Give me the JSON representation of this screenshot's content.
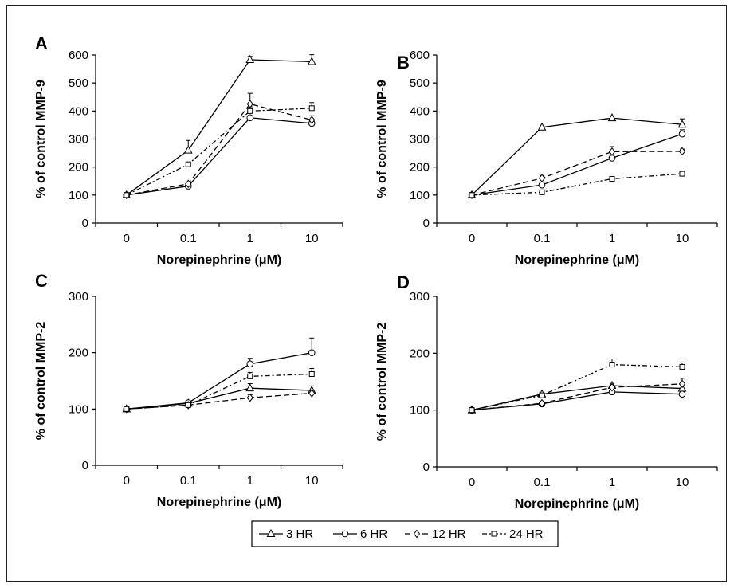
{
  "chart_data": [
    {
      "panel": "A",
      "type": "line",
      "categories": [
        "0",
        "0.1",
        "1",
        "10"
      ],
      "xlabel": "Norepinephrine (μM)",
      "ylabel": "% of control MMP-9",
      "ylim": [
        0,
        600
      ],
      "yticks": [
        "0",
        "100",
        "200",
        "300",
        "400",
        "500",
        "600"
      ],
      "series": [
        {
          "name": "3 HR",
          "values": [
            100,
            260,
            583,
            576
          ],
          "errors": [
            0,
            35,
            12,
            25
          ]
        },
        {
          "name": "6 HR",
          "values": [
            100,
            132,
            376,
            356
          ],
          "errors": [
            0,
            0,
            0,
            8
          ]
        },
        {
          "name": "12 HR",
          "values": [
            100,
            140,
            425,
            368
          ],
          "errors": [
            0,
            0,
            38,
            15
          ]
        },
        {
          "name": "24 HR",
          "values": [
            100,
            210,
            400,
            410
          ],
          "errors": [
            0,
            0,
            15,
            20
          ]
        }
      ]
    },
    {
      "panel": "B",
      "type": "line",
      "categories": [
        "0",
        "0.1",
        "1",
        "10"
      ],
      "xlabel": "Norepinephrine (μM)",
      "ylabel": "% of control MMP-9",
      "ylim": [
        0,
        600
      ],
      "yticks": [
        "0",
        "100",
        "200",
        "300",
        "400",
        "500",
        "600"
      ],
      "series": [
        {
          "name": "3 HR",
          "values": [
            100,
            342,
            375,
            352
          ],
          "errors": [
            0,
            5,
            5,
            20
          ]
        },
        {
          "name": "6 HR",
          "values": [
            100,
            136,
            232,
            318
          ],
          "errors": [
            0,
            0,
            0,
            15
          ]
        },
        {
          "name": "12 HR",
          "values": [
            100,
            160,
            255,
            256
          ],
          "errors": [
            0,
            10,
            18,
            8
          ]
        },
        {
          "name": "24 HR",
          "values": [
            100,
            110,
            158,
            176
          ],
          "errors": [
            0,
            0,
            5,
            10
          ]
        }
      ]
    },
    {
      "panel": "C",
      "type": "line",
      "categories": [
        "0",
        "0.1",
        "1",
        "10"
      ],
      "xlabel": "Norepinephrine (μM)",
      "ylabel": "% of control MMP-2",
      "ylim": [
        0,
        300
      ],
      "yticks": [
        "0",
        "100",
        "200",
        "300"
      ],
      "series": [
        {
          "name": "3 HR",
          "values": [
            100,
            110,
            137,
            133
          ],
          "errors": [
            0,
            0,
            8,
            8
          ]
        },
        {
          "name": "6 HR",
          "values": [
            100,
            111,
            180,
            200
          ],
          "errors": [
            0,
            0,
            10,
            26
          ]
        },
        {
          "name": "12 HR",
          "values": [
            100,
            107,
            120,
            128
          ],
          "errors": [
            0,
            0,
            5,
            5
          ]
        },
        {
          "name": "24 HR",
          "values": [
            100,
            107,
            158,
            162
          ],
          "errors": [
            0,
            0,
            7,
            10
          ]
        }
      ]
    },
    {
      "panel": "D",
      "type": "line",
      "categories": [
        "0",
        "0.1",
        "1",
        "10"
      ],
      "xlabel": "Norepinephrine (μM)",
      "ylabel": "% of control MMP-2",
      "ylim": [
        0,
        300
      ],
      "yticks": [
        "0",
        "100",
        "200",
        "300"
      ],
      "series": [
        {
          "name": "3 HR",
          "values": [
            100,
            128,
            143,
            138
          ],
          "errors": [
            0,
            0,
            0,
            8
          ]
        },
        {
          "name": "6 HR",
          "values": [
            100,
            111,
            132,
            128
          ],
          "errors": [
            0,
            0,
            0,
            5
          ]
        },
        {
          "name": "12 HR",
          "values": [
            100,
            112,
            140,
            146
          ],
          "errors": [
            0,
            0,
            0,
            10
          ]
        },
        {
          "name": "24 HR",
          "values": [
            100,
            126,
            180,
            176
          ],
          "errors": [
            0,
            0,
            10,
            7
          ]
        }
      ]
    }
  ],
  "legend": {
    "items": [
      "3 HR",
      "6 HR",
      "12 HR",
      "24 HR"
    ]
  }
}
